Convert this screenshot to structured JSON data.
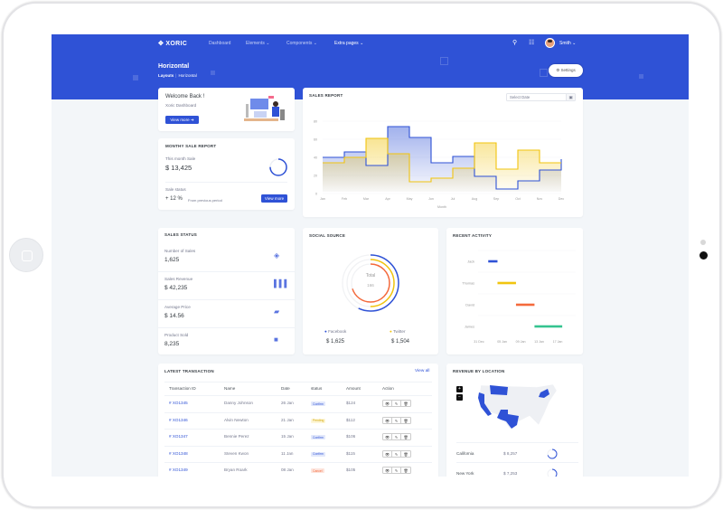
{
  "brand": {
    "name": "XORIC",
    "primary": "#2f52d6",
    "yellow": "#f1c40f",
    "red": "#f46a3c",
    "green": "#34c38f"
  },
  "nav": {
    "items": [
      {
        "label": "Dashboard"
      },
      {
        "label": "Elements ⌄"
      },
      {
        "label": "Components ⌄"
      },
      {
        "label": "Extra pages ⌄"
      }
    ],
    "user": "Smith ⌄",
    "search_icon": "search-icon",
    "sliders_icon": "sliders-icon"
  },
  "page": {
    "title": "Horizontal",
    "breadcrumb": [
      "Layouts",
      "Horizontal"
    ],
    "settings_label": "Settings"
  },
  "welcome": {
    "title": "Welcome Back !",
    "subtitle": "Xoric Dashboard",
    "button": "View more ➔"
  },
  "monthly": {
    "title": "MONTHY SALE REPORT",
    "this_month_label": "This month Sale",
    "this_month_value": "$ 13,425",
    "progress_percent": 75,
    "status_label": "Sale status",
    "status_value": "+ 12 %",
    "status_note": "From previous period",
    "button": "View more"
  },
  "sales_report": {
    "title": "SALES REPORT",
    "date_placeholder": "Select Date"
  },
  "chart_data": [
    {
      "type": "line",
      "step": true,
      "title": "SALES REPORT",
      "xlabel": "Month",
      "ylabel": "",
      "ylim": [
        0,
        80
      ],
      "yticks": [
        0,
        20,
        40,
        60,
        80
      ],
      "categories": [
        "Jan",
        "Feb",
        "Mar",
        "Apr",
        "May",
        "Jun",
        "Jul",
        "Aug",
        "Sep",
        "Oct",
        "Nov",
        "Dec"
      ],
      "series": [
        {
          "color": "#2f52d6",
          "values": [
            40,
            46,
            31,
            74,
            62,
            34,
            41,
            19,
            5,
            14,
            26,
            38
          ]
        },
        {
          "color": "#f1c40f",
          "values": [
            34,
            40,
            61,
            44,
            13,
            17,
            28,
            56,
            27,
            48,
            34,
            34
          ]
        }
      ]
    },
    {
      "type": "bar",
      "orientation": "timeline",
      "title": "RECENT ACTIVITY",
      "categories": [
        "Jack",
        "Thomas",
        "David",
        "James"
      ],
      "xticks": [
        "31 Dec",
        "05 Jan",
        "09 Jan",
        "13 Jan",
        "17 Jan"
      ],
      "ranges": [
        {
          "name": "Jack",
          "start": "02 Jan",
          "end": "04 Jan",
          "color": "#2f52d6"
        },
        {
          "name": "Thomas",
          "start": "04 Jan",
          "end": "08 Jan",
          "color": "#f1c40f"
        },
        {
          "name": "David",
          "start": "08 Jan",
          "end": "12 Jan",
          "color": "#f46a3c"
        },
        {
          "name": "James",
          "start": "12 Jan",
          "end": "18 Jan",
          "color": "#34c38f"
        }
      ]
    },
    {
      "type": "pie",
      "variant": "radial",
      "title": "SOCIAL SOURCE",
      "center_label": "Total",
      "center_value": "166",
      "series": [
        {
          "name": "Facebook",
          "percent": 57,
          "color": "#2f52d6"
        },
        {
          "name": "Twitter",
          "percent": 50,
          "color": "#f1c40f"
        },
        {
          "percent": 70,
          "color": "#f46a3c"
        }
      ]
    }
  ],
  "sales_status": {
    "title": "SALES STATUS",
    "items": [
      {
        "label": "Number of Sales",
        "value": "1,625",
        "icon": "layers-icon"
      },
      {
        "label": "Sales Revenue",
        "value": "$ 42,235",
        "icon": "bar-chart-icon"
      },
      {
        "label": "Average Price",
        "value": "$ 14.56",
        "icon": "ticket-icon"
      },
      {
        "label": "Product Sold",
        "value": "8,235",
        "icon": "box-icon"
      }
    ]
  },
  "social": {
    "title": "SOCIAL SOURCE",
    "legend": [
      {
        "name": "Facebook",
        "value": "$ 1,625"
      },
      {
        "name": "Twitter",
        "value": "$ 1,504"
      }
    ]
  },
  "activity": {
    "title": "RECENT ACTIVITY"
  },
  "transactions": {
    "title": "LATEST TRANSACTION",
    "view_all": "View all",
    "columns": [
      "Transaction ID",
      "Name",
      "Date",
      "status",
      "Amount",
      "Action"
    ],
    "rows": [
      {
        "id": "# XO1345",
        "name": "Danny Johnson",
        "date": "26 Jan",
        "status": "Confirm",
        "amount": "$124"
      },
      {
        "id": "# XO1346",
        "name": "Alvin Newton",
        "date": "21 Jan",
        "status": "Pending",
        "amount": "$112"
      },
      {
        "id": "# XO1347",
        "name": "Bennie Perez",
        "date": "15 Jan",
        "status": "Confirm",
        "amount": "$106"
      },
      {
        "id": "# XO1348",
        "name": "Steven Kwon",
        "date": "11 Jan",
        "status": "Confirm",
        "amount": "$115"
      },
      {
        "id": "# XO1349",
        "name": "Bryan Roark",
        "date": "08 Jan",
        "status": "Cancel",
        "amount": "$105"
      }
    ]
  },
  "revenue": {
    "title": "REVENUE BY LOCATION",
    "zoom_in": "+",
    "zoom_out": "−",
    "highlighted_states": [
      "Montana",
      "California",
      "Texas",
      "New York"
    ],
    "rows": [
      {
        "location": "California",
        "value": "$ 8,257",
        "percent": 70
      },
      {
        "location": "New York",
        "value": "$ 7,253",
        "percent": 55
      }
    ]
  }
}
